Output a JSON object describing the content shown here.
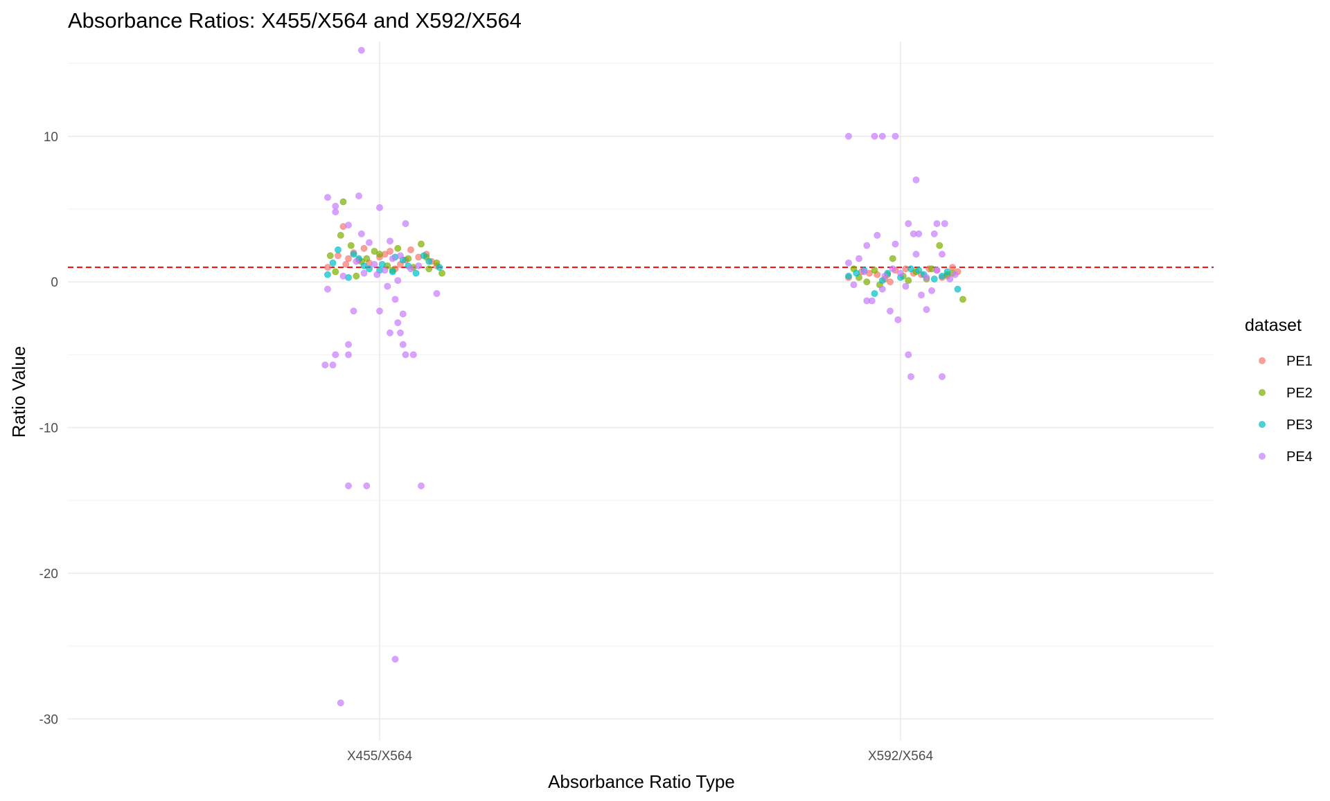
{
  "chart_data": {
    "type": "scatter",
    "title": "Absorbance Ratios: X455/X564 and X592/X564",
    "xlabel": "Absorbance Ratio Type",
    "ylabel": "Ratio Value",
    "categories": [
      "X455/X564",
      "X592/X564"
    ],
    "ylim": [
      -31.5,
      16.5
    ],
    "yticks": [
      10,
      0,
      -10,
      -20,
      -30
    ],
    "ytick_labels": [
      "10",
      "0",
      "-10",
      "-20",
      "-30"
    ],
    "reference_line": {
      "y": 1,
      "color": "#ff0000",
      "style": "dashed"
    },
    "grid": true,
    "legend": {
      "title": "dataset",
      "position": "right"
    },
    "series": [
      {
        "name": "PE1",
        "color": "#F8766D",
        "points": [
          {
            "x": "X455/X564",
            "j": -0.12,
            "y": 1.6
          },
          {
            "x": "X455/X564",
            "j": -0.06,
            "y": 2.3
          },
          {
            "x": "X455/X564",
            "j": 0.02,
            "y": 1.9
          },
          {
            "x": "X455/X564",
            "j": 0.08,
            "y": 1.2
          },
          {
            "x": "X455/X564",
            "j": 0.15,
            "y": 1.7
          },
          {
            "x": "X455/X564",
            "j": 0.2,
            "y": 1.4
          },
          {
            "x": "X455/X564",
            "j": -0.2,
            "y": 1.0
          },
          {
            "x": "X455/X564",
            "j": -0.16,
            "y": 1.8
          },
          {
            "x": "X455/X564",
            "j": -0.04,
            "y": 1.3
          },
          {
            "x": "X455/X564",
            "j": 0.04,
            "y": 2.1
          },
          {
            "x": "X455/X564",
            "j": 0.1,
            "y": 1.5
          },
          {
            "x": "X455/X564",
            "j": 0.18,
            "y": 1.9
          },
          {
            "x": "X455/X564",
            "j": 0.22,
            "y": 1.1
          },
          {
            "x": "X455/X564",
            "j": -0.1,
            "y": 2.0
          },
          {
            "x": "X455/X564",
            "j": -0.08,
            "y": 1.5
          },
          {
            "x": "X455/X564",
            "j": 0.12,
            "y": 2.2
          },
          {
            "x": "X455/X564",
            "j": 0.06,
            "y": 0.9
          },
          {
            "x": "X455/X564",
            "j": -0.13,
            "y": 1.2
          },
          {
            "x": "X455/X564",
            "j": 0.0,
            "y": 1.7
          },
          {
            "x": "X455/X564",
            "j": -0.14,
            "y": 3.8
          },
          {
            "x": "X592/X564",
            "j": -0.15,
            "y": 0.7
          },
          {
            "x": "X592/X564",
            "j": -0.09,
            "y": 0.5
          },
          {
            "x": "X592/X564",
            "j": -0.02,
            "y": 0.8
          },
          {
            "x": "X592/X564",
            "j": 0.05,
            "y": 0.6
          },
          {
            "x": "X592/X564",
            "j": 0.11,
            "y": 0.9
          },
          {
            "x": "X592/X564",
            "j": 0.18,
            "y": 0.4
          },
          {
            "x": "X592/X564",
            "j": 0.22,
            "y": 0.7
          },
          {
            "x": "X592/X564",
            "j": -0.2,
            "y": 0.3
          },
          {
            "x": "X592/X564",
            "j": -0.06,
            "y": 0.2
          },
          {
            "x": "X592/X564",
            "j": 0.02,
            "y": 0.9
          },
          {
            "x": "X592/X564",
            "j": 0.08,
            "y": 0.5
          },
          {
            "x": "X592/X564",
            "j": 0.14,
            "y": 0.8
          },
          {
            "x": "X592/X564",
            "j": -0.12,
            "y": 0.6
          },
          {
            "x": "X592/X564",
            "j": 0.2,
            "y": 1.0
          },
          {
            "x": "X592/X564",
            "j": -0.04,
            "y": 0.0
          },
          {
            "x": "X592/X564",
            "j": 0.16,
            "y": 0.3
          }
        ]
      },
      {
        "name": "PE2",
        "color": "#7CAE00",
        "points": [
          {
            "x": "X455/X564",
            "j": -0.19,
            "y": 1.8
          },
          {
            "x": "X455/X564",
            "j": -0.14,
            "y": 5.5
          },
          {
            "x": "X455/X564",
            "j": -0.11,
            "y": 2.5
          },
          {
            "x": "X455/X564",
            "j": -0.07,
            "y": 1.4
          },
          {
            "x": "X455/X564",
            "j": -0.02,
            "y": 2.1
          },
          {
            "x": "X455/X564",
            "j": 0.03,
            "y": 1.1
          },
          {
            "x": "X455/X564",
            "j": 0.07,
            "y": 2.3
          },
          {
            "x": "X455/X564",
            "j": 0.11,
            "y": 1.6
          },
          {
            "x": "X455/X564",
            "j": 0.16,
            "y": 2.6
          },
          {
            "x": "X455/X564",
            "j": 0.19,
            "y": 0.9
          },
          {
            "x": "X455/X564",
            "j": 0.22,
            "y": 1.3
          },
          {
            "x": "X455/X564",
            "j": 0.24,
            "y": 0.6
          },
          {
            "x": "X455/X564",
            "j": -0.17,
            "y": 0.7
          },
          {
            "x": "X455/X564",
            "j": -0.09,
            "y": 0.4
          },
          {
            "x": "X455/X564",
            "j": 0.0,
            "y": 1.9
          },
          {
            "x": "X455/X564",
            "j": 0.05,
            "y": 0.8
          },
          {
            "x": "X455/X564",
            "j": 0.13,
            "y": 1.0
          },
          {
            "x": "X455/X564",
            "j": -0.05,
            "y": 1.6
          },
          {
            "x": "X455/X564",
            "j": -0.15,
            "y": 3.2
          },
          {
            "x": "X455/X564",
            "j": 0.18,
            "y": 1.7
          },
          {
            "x": "X592/X564",
            "j": -0.18,
            "y": 0.9
          },
          {
            "x": "X592/X564",
            "j": -0.13,
            "y": 0.0
          },
          {
            "x": "X592/X564",
            "j": -0.08,
            "y": -0.2
          },
          {
            "x": "X592/X564",
            "j": -0.03,
            "y": 1.6
          },
          {
            "x": "X592/X564",
            "j": 0.01,
            "y": 0.4
          },
          {
            "x": "X592/X564",
            "j": 0.06,
            "y": 0.7
          },
          {
            "x": "X592/X564",
            "j": 0.1,
            "y": 0.2
          },
          {
            "x": "X592/X564",
            "j": 0.15,
            "y": 2.5
          },
          {
            "x": "X592/X564",
            "j": 0.2,
            "y": 0.6
          },
          {
            "x": "X592/X564",
            "j": 0.24,
            "y": -1.2
          },
          {
            "x": "X592/X564",
            "j": -0.1,
            "y": 0.8
          },
          {
            "x": "X592/X564",
            "j": 0.03,
            "y": 0.1
          },
          {
            "x": "X592/X564",
            "j": 0.12,
            "y": 0.9
          },
          {
            "x": "X592/X564",
            "j": -0.16,
            "y": 0.3
          },
          {
            "x": "X592/X564",
            "j": 0.18,
            "y": 0.5
          },
          {
            "x": "X592/X564",
            "j": -0.05,
            "y": 0.5
          }
        ]
      },
      {
        "name": "PE3",
        "color": "#00BFC4",
        "points": [
          {
            "x": "X455/X564",
            "j": -0.2,
            "y": 0.5
          },
          {
            "x": "X455/X564",
            "j": -0.16,
            "y": 2.2
          },
          {
            "x": "X455/X564",
            "j": -0.12,
            "y": 0.3
          },
          {
            "x": "X455/X564",
            "j": -0.08,
            "y": 1.6
          },
          {
            "x": "X455/X564",
            "j": -0.04,
            "y": 0.9
          },
          {
            "x": "X455/X564",
            "j": 0.01,
            "y": 1.2
          },
          {
            "x": "X455/X564",
            "j": 0.05,
            "y": 0.7
          },
          {
            "x": "X455/X564",
            "j": 0.09,
            "y": 1.5
          },
          {
            "x": "X455/X564",
            "j": 0.14,
            "y": 0.6
          },
          {
            "x": "X455/X564",
            "j": 0.19,
            "y": 1.4
          },
          {
            "x": "X455/X564",
            "j": 0.23,
            "y": 1.0
          },
          {
            "x": "X455/X564",
            "j": -0.18,
            "y": 1.3
          },
          {
            "x": "X455/X564",
            "j": -0.1,
            "y": 1.9
          },
          {
            "x": "X455/X564",
            "j": 0.0,
            "y": 0.8
          },
          {
            "x": "X455/X564",
            "j": 0.11,
            "y": 1.1
          },
          {
            "x": "X455/X564",
            "j": 0.17,
            "y": 1.8
          },
          {
            "x": "X455/X564",
            "j": -0.06,
            "y": 1.1
          },
          {
            "x": "X455/X564",
            "j": 0.06,
            "y": 1.7
          },
          {
            "x": "X592/X564",
            "j": -0.2,
            "y": 0.4
          },
          {
            "x": "X592/X564",
            "j": -0.14,
            "y": 0.8
          },
          {
            "x": "X592/X564",
            "j": -0.1,
            "y": -0.8
          },
          {
            "x": "X592/X564",
            "j": -0.05,
            "y": 0.6
          },
          {
            "x": "X592/X564",
            "j": 0.0,
            "y": 0.3
          },
          {
            "x": "X592/X564",
            "j": 0.04,
            "y": 0.9
          },
          {
            "x": "X592/X564",
            "j": 0.09,
            "y": 0.5
          },
          {
            "x": "X592/X564",
            "j": 0.13,
            "y": 0.2
          },
          {
            "x": "X592/X564",
            "j": 0.18,
            "y": 0.7
          },
          {
            "x": "X592/X564",
            "j": 0.22,
            "y": -0.5
          },
          {
            "x": "X592/X564",
            "j": -0.17,
            "y": 0.6
          },
          {
            "x": "X592/X564",
            "j": 0.07,
            "y": 0.8
          },
          {
            "x": "X592/X564",
            "j": -0.07,
            "y": 0.1
          },
          {
            "x": "X592/X564",
            "j": 0.16,
            "y": 0.4
          }
        ]
      },
      {
        "name": "PE4",
        "color": "#C77CFF",
        "points": [
          {
            "x": "X455/X564",
            "j": -0.07,
            "y": 15.9
          },
          {
            "x": "X455/X564",
            "j": -0.2,
            "y": 5.8
          },
          {
            "x": "X455/X564",
            "j": -0.17,
            "y": 5.2
          },
          {
            "x": "X455/X564",
            "j": -0.17,
            "y": 4.8
          },
          {
            "x": "X455/X564",
            "j": -0.07,
            "y": 3.3
          },
          {
            "x": "X455/X564",
            "j": -0.04,
            "y": 2.7
          },
          {
            "x": "X455/X564",
            "j": -0.12,
            "y": 3.9
          },
          {
            "x": "X455/X564",
            "j": -0.08,
            "y": 5.9
          },
          {
            "x": "X455/X564",
            "j": 0.0,
            "y": 5.1
          },
          {
            "x": "X455/X564",
            "j": 0.1,
            "y": 4.0
          },
          {
            "x": "X455/X564",
            "j": 0.04,
            "y": 2.8
          },
          {
            "x": "X455/X564",
            "j": -0.2,
            "y": -0.5
          },
          {
            "x": "X455/X564",
            "j": -0.1,
            "y": -2.0
          },
          {
            "x": "X455/X564",
            "j": 0.0,
            "y": -2.0
          },
          {
            "x": "X455/X564",
            "j": 0.06,
            "y": -1.2
          },
          {
            "x": "X455/X564",
            "j": 0.09,
            "y": -2.2
          },
          {
            "x": "X455/X564",
            "j": 0.07,
            "y": -2.8
          },
          {
            "x": "X455/X564",
            "j": 0.04,
            "y": -3.5
          },
          {
            "x": "X455/X564",
            "j": 0.08,
            "y": -3.5
          },
          {
            "x": "X455/X564",
            "j": 0.09,
            "y": -4.3
          },
          {
            "x": "X455/X564",
            "j": -0.12,
            "y": -4.3
          },
          {
            "x": "X455/X564",
            "j": -0.17,
            "y": -5.0
          },
          {
            "x": "X455/X564",
            "j": -0.12,
            "y": -5.0
          },
          {
            "x": "X455/X564",
            "j": 0.1,
            "y": -5.0
          },
          {
            "x": "X455/X564",
            "j": 0.13,
            "y": -5.0
          },
          {
            "x": "X455/X564",
            "j": -0.21,
            "y": -5.7
          },
          {
            "x": "X455/X564",
            "j": -0.18,
            "y": -5.7
          },
          {
            "x": "X455/X564",
            "j": -0.12,
            "y": -14.0
          },
          {
            "x": "X455/X564",
            "j": -0.05,
            "y": -14.0
          },
          {
            "x": "X455/X564",
            "j": 0.16,
            "y": -14.0
          },
          {
            "x": "X455/X564",
            "j": 0.06,
            "y": -25.9
          },
          {
            "x": "X455/X564",
            "j": -0.15,
            "y": -28.9
          },
          {
            "x": "X455/X564",
            "j": 0.22,
            "y": -0.8
          },
          {
            "x": "X455/X564",
            "j": 0.03,
            "y": -0.3
          },
          {
            "x": "X455/X564",
            "j": 0.07,
            "y": 0.1
          },
          {
            "x": "X455/X564",
            "j": -0.06,
            "y": 0.6
          },
          {
            "x": "X455/X564",
            "j": -0.02,
            "y": 1.2
          },
          {
            "x": "X455/X564",
            "j": 0.02,
            "y": 0.8
          },
          {
            "x": "X455/X564",
            "j": 0.05,
            "y": 1.6
          },
          {
            "x": "X455/X564",
            "j": -0.14,
            "y": 0.4
          },
          {
            "x": "X455/X564",
            "j": 0.12,
            "y": 0.9
          },
          {
            "x": "X455/X564",
            "j": -0.09,
            "y": 1.4
          },
          {
            "x": "X455/X564",
            "j": 0.15,
            "y": 1.1
          },
          {
            "x": "X455/X564",
            "j": -0.01,
            "y": 0.5
          },
          {
            "x": "X455/X564",
            "j": 0.08,
            "y": 1.8
          },
          {
            "x": "X592/X564",
            "j": -0.2,
            "y": 10.0
          },
          {
            "x": "X592/X564",
            "j": -0.1,
            "y": 10.0
          },
          {
            "x": "X592/X564",
            "j": -0.07,
            "y": 10.0
          },
          {
            "x": "X592/X564",
            "j": -0.02,
            "y": 10.0
          },
          {
            "x": "X592/X564",
            "j": 0.06,
            "y": 7.0
          },
          {
            "x": "X592/X564",
            "j": 0.05,
            "y": 3.3
          },
          {
            "x": "X592/X564",
            "j": 0.07,
            "y": 3.3
          },
          {
            "x": "X592/X564",
            "j": 0.13,
            "y": 3.3
          },
          {
            "x": "X592/X564",
            "j": 0.03,
            "y": 4.0
          },
          {
            "x": "X592/X564",
            "j": 0.14,
            "y": 4.0
          },
          {
            "x": "X592/X564",
            "j": 0.17,
            "y": 4.0
          },
          {
            "x": "X592/X564",
            "j": -0.09,
            "y": 3.2
          },
          {
            "x": "X592/X564",
            "j": -0.13,
            "y": 2.5
          },
          {
            "x": "X592/X564",
            "j": -0.02,
            "y": 2.6
          },
          {
            "x": "X592/X564",
            "j": 0.06,
            "y": 1.9
          },
          {
            "x": "X592/X564",
            "j": 0.16,
            "y": 1.9
          },
          {
            "x": "X592/X564",
            "j": -0.2,
            "y": 1.3
          },
          {
            "x": "X592/X564",
            "j": -0.16,
            "y": 1.6
          },
          {
            "x": "X592/X564",
            "j": -0.04,
            "y": -2.0
          },
          {
            "x": "X592/X564",
            "j": -0.01,
            "y": -2.6
          },
          {
            "x": "X592/X564",
            "j": 0.1,
            "y": -1.9
          },
          {
            "x": "X592/X564",
            "j": -0.13,
            "y": -1.3
          },
          {
            "x": "X592/X564",
            "j": -0.11,
            "y": -1.3
          },
          {
            "x": "X592/X564",
            "j": 0.03,
            "y": -5.0
          },
          {
            "x": "X592/X564",
            "j": 0.04,
            "y": -6.5
          },
          {
            "x": "X592/X564",
            "j": 0.16,
            "y": -6.5
          },
          {
            "x": "X592/X564",
            "j": 0.12,
            "y": -0.6
          },
          {
            "x": "X592/X564",
            "j": 0.08,
            "y": -0.9
          },
          {
            "x": "X592/X564",
            "j": -0.07,
            "y": -0.5
          },
          {
            "x": "X592/X564",
            "j": 0.02,
            "y": -0.3
          },
          {
            "x": "X592/X564",
            "j": -0.18,
            "y": -0.2
          },
          {
            "x": "X592/X564",
            "j": 0.19,
            "y": 0.2
          },
          {
            "x": "X592/X564",
            "j": -0.06,
            "y": 0.4
          },
          {
            "x": "X592/X564",
            "j": 0.0,
            "y": 0.6
          },
          {
            "x": "X592/X564",
            "j": 0.1,
            "y": 0.3
          },
          {
            "x": "X592/X564",
            "j": -0.14,
            "y": 0.7
          },
          {
            "x": "X592/X564",
            "j": 0.14,
            "y": 0.8
          },
          {
            "x": "X592/X564",
            "j": -0.03,
            "y": 0.9
          },
          {
            "x": "X592/X564",
            "j": 0.21,
            "y": 0.5
          }
        ]
      }
    ]
  }
}
